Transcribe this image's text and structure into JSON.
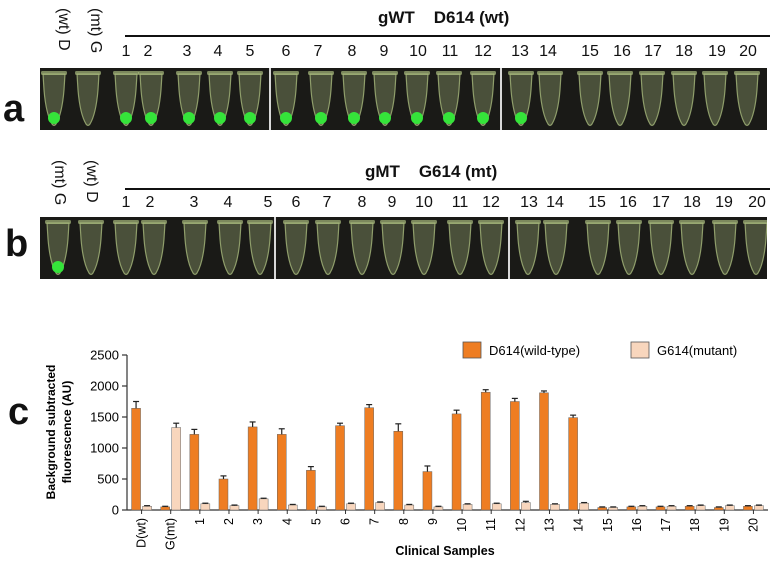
{
  "panel_a": {
    "letter": "a",
    "title": "gWT    D614 (wt)",
    "control_labels": [
      "(wt) D",
      "(mt) G"
    ],
    "sample_numbers": [
      "1",
      "2",
      "3",
      "4",
      "5",
      "6",
      "7",
      "8",
      "9",
      "10",
      "11",
      "12",
      "13",
      "14",
      "15",
      "16",
      "17",
      "18",
      "19",
      "20"
    ],
    "glow": [
      1,
      0,
      1,
      1,
      1,
      1,
      1,
      1,
      1,
      1,
      1,
      1,
      1,
      1,
      1,
      0,
      0,
      0,
      0,
      0,
      0,
      0
    ]
  },
  "panel_b": {
    "letter": "b",
    "title": "gMT    G614 (mt)",
    "control_labels": [
      "(mt) G",
      "(wt) D"
    ],
    "sample_numbers": [
      "1",
      "2",
      "3",
      "4",
      "5",
      "6",
      "7",
      "8",
      "9",
      "10",
      "11",
      "12",
      "13",
      "14",
      "15",
      "16",
      "17",
      "18",
      "19",
      "20"
    ],
    "glow": [
      1,
      0,
      0,
      0,
      0,
      0,
      0,
      0,
      0,
      0,
      0,
      0,
      0,
      0,
      0,
      0,
      0,
      0,
      0,
      0,
      0,
      0
    ]
  },
  "panel_c": {
    "letter": "c"
  },
  "colors": {
    "wild_type": "#ee7d22",
    "mutant": "#f8d6bd",
    "glow": "#35e43a",
    "tube": "#a6b87c"
  },
  "chart_data": {
    "type": "bar",
    "ylabel": "Background subtracted fluorescence (AU)",
    "ylabel_lines": [
      "Background subtracted",
      "fluorescence (AU)"
    ],
    "xlabel": "Clinical Samples",
    "ylim": [
      0,
      2500
    ],
    "yticks": [
      "0",
      "500",
      "1000",
      "1500",
      "2000",
      "2500"
    ],
    "categories": [
      "D(wt)",
      "G(mt)",
      "1",
      "2",
      "3",
      "4",
      "5",
      "6",
      "7",
      "8",
      "9",
      "10",
      "11",
      "12",
      "13",
      "14",
      "15",
      "16",
      "17",
      "18",
      "19",
      "20"
    ],
    "series": [
      {
        "name": "D614(wild-type)",
        "values": [
          1640,
          50,
          1220,
          500,
          1340,
          1220,
          640,
          1360,
          1650,
          1270,
          620,
          1550,
          1900,
          1750,
          1890,
          1490,
          40,
          50,
          50,
          60,
          40,
          60
        ],
        "errors": [
          110,
          10,
          80,
          50,
          80,
          90,
          60,
          40,
          50,
          120,
          90,
          60,
          40,
          50,
          30,
          40,
          10,
          10,
          10,
          10,
          10,
          10
        ]
      },
      {
        "name": "G614(mutant)",
        "values": [
          60,
          1330,
          100,
          70,
          180,
          80,
          50,
          100,
          120,
          80,
          50,
          90,
          100,
          120,
          90,
          110,
          40,
          60,
          60,
          70,
          70,
          70
        ],
        "errors": [
          10,
          70,
          10,
          10,
          10,
          10,
          10,
          10,
          10,
          10,
          10,
          10,
          10,
          20,
          10,
          10,
          10,
          10,
          10,
          10,
          10,
          10
        ]
      }
    ]
  }
}
